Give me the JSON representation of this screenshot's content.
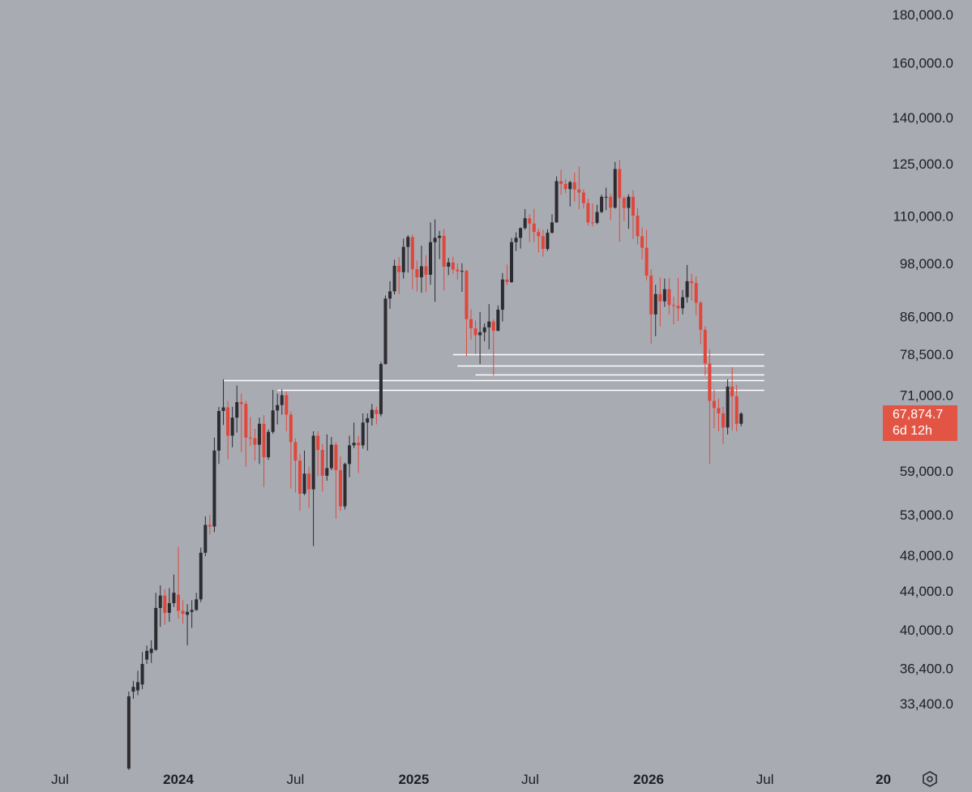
{
  "chart_data": {
    "type": "candlestick",
    "title": "",
    "y_scale": "log",
    "ylim": [
      31500,
      184000
    ],
    "y_ticks": [
      {
        "value": 180000,
        "label": "180,000.0"
      },
      {
        "value": 160000,
        "label": "160,000.0"
      },
      {
        "value": 140000,
        "label": "140,000.0"
      },
      {
        "value": 125000,
        "label": "125,000.0"
      },
      {
        "value": 110000,
        "label": "110,000.0"
      },
      {
        "value": 98000,
        "label": "98,000.0"
      },
      {
        "value": 86000,
        "label": "86,000.0"
      },
      {
        "value": 78500,
        "label": "78,500.0"
      },
      {
        "value": 71000,
        "label": "71,000.0"
      },
      {
        "value": 59000,
        "label": "59,000.0"
      },
      {
        "value": 53000,
        "label": "53,000.0"
      },
      {
        "value": 48000,
        "label": "48,000.0"
      },
      {
        "value": 44000,
        "label": "44,000.0"
      },
      {
        "value": 40000,
        "label": "40,000.0"
      },
      {
        "value": 36400,
        "label": "36,400.0"
      },
      {
        "value": 33400,
        "label": "33,400.0"
      }
    ],
    "x_ticks": [
      {
        "date": "2023-07-01",
        "label": "Jul",
        "bold": false
      },
      {
        "date": "2024-01-01",
        "label": "2024",
        "bold": true
      },
      {
        "date": "2024-07-01",
        "label": "Jul",
        "bold": false
      },
      {
        "date": "2025-01-01",
        "label": "2025",
        "bold": true
      },
      {
        "date": "2025-07-01",
        "label": "Jul",
        "bold": false
      },
      {
        "date": "2026-01-01",
        "label": "2026",
        "bold": true
      },
      {
        "date": "2026-07-01",
        "label": "Jul",
        "bold": false
      },
      {
        "date": "2027-01-01",
        "label": "20",
        "bold": true
      }
    ],
    "x_range": [
      "2023-06-01",
      "2027-03-20"
    ],
    "series": [
      {
        "timeframe": "weekly",
        "start_date": "2023-10-16",
        "colors": {
          "up": "#2b2b30",
          "down": "#e0473b"
        },
        "candles": [
          [
            28500,
            34000,
            28400,
            34400
          ],
          [
            34400,
            34800,
            33800,
            35300
          ],
          [
            34500,
            35200,
            34100,
            36200
          ],
          [
            35000,
            36800,
            34600,
            37900
          ],
          [
            37200,
            38000,
            36800,
            38500
          ],
          [
            37800,
            38200,
            36900,
            39000
          ],
          [
            38100,
            42200,
            38000,
            43800
          ],
          [
            42200,
            43500,
            40300,
            44600
          ],
          [
            43500,
            41700,
            40500,
            44200
          ],
          [
            41700,
            42700,
            40800,
            44300
          ],
          [
            42700,
            43800,
            42300,
            45800
          ],
          [
            43600,
            41900,
            41100,
            49000
          ],
          [
            41900,
            41600,
            40600,
            43000
          ],
          [
            41500,
            41800,
            38500,
            42600
          ],
          [
            41800,
            42000,
            40200,
            43000
          ],
          [
            42000,
            43100,
            41900,
            43800
          ],
          [
            43100,
            48300,
            42800,
            48900
          ],
          [
            48300,
            51700,
            47900,
            52800
          ],
          [
            51700,
            51500,
            50500,
            53000
          ],
          [
            51500,
            62000,
            50800,
            64000
          ],
          [
            62000,
            68300,
            60000,
            69000
          ],
          [
            68300,
            68900,
            66000,
            73800
          ],
          [
            68900,
            64300,
            60700,
            70000
          ],
          [
            64300,
            67200,
            62500,
            69000
          ],
          [
            67200,
            69800,
            64800,
            72700
          ],
          [
            69800,
            69500,
            61800,
            71300
          ],
          [
            69500,
            64000,
            59600,
            70000
          ],
          [
            64000,
            63900,
            62700,
            67300
          ],
          [
            63900,
            62900,
            60500,
            65400
          ],
          [
            62900,
            66200,
            60000,
            67200
          ],
          [
            66200,
            61000,
            56700,
            67600
          ],
          [
            61000,
            64900,
            60600,
            65300
          ],
          [
            64900,
            68400,
            64600,
            71900
          ],
          [
            68400,
            69300,
            66100,
            71300
          ],
          [
            69300,
            71000,
            67700,
            72000
          ],
          [
            71000,
            67700,
            65000,
            71600
          ],
          [
            67700,
            63300,
            56500,
            68200
          ],
          [
            63300,
            60500,
            56000,
            63900
          ],
          [
            60500,
            55800,
            53500,
            61500
          ],
          [
            55800,
            58600,
            55600,
            62000
          ],
          [
            58600,
            56400,
            53900,
            59600
          ],
          [
            56400,
            64300,
            49100,
            65000
          ],
          [
            64300,
            62100,
            58300,
            65000
          ],
          [
            62100,
            58300,
            56100,
            63000
          ],
          [
            58300,
            59400,
            57600,
            64500
          ],
          [
            59400,
            62900,
            59100,
            64100
          ],
          [
            62900,
            59100,
            52500,
            63300
          ],
          [
            59100,
            54100,
            53500,
            61100
          ],
          [
            54100,
            60000,
            53700,
            60200
          ],
          [
            60000,
            62800,
            58100,
            64300
          ],
          [
            62800,
            63200,
            62400,
            66400
          ],
          [
            63200,
            62800,
            58700,
            64300
          ],
          [
            62800,
            66400,
            62300,
            67900
          ],
          [
            66400,
            67100,
            62000,
            67900
          ],
          [
            67100,
            68500,
            65900,
            69500
          ],
          [
            68500,
            67800,
            66100,
            69000
          ],
          [
            67800,
            76600,
            67400,
            77000
          ],
          [
            76600,
            89900,
            76500,
            90600
          ],
          [
            89900,
            91500,
            87700,
            93800
          ],
          [
            91500,
            97400,
            90800,
            98900
          ],
          [
            97400,
            95900,
            90900,
            99500
          ],
          [
            95900,
            102000,
            94400,
            104100
          ],
          [
            102000,
            104500,
            95800,
            105000
          ],
          [
            104500,
            96600,
            92000,
            105100
          ],
          [
            96600,
            94700,
            91500,
            98700
          ],
          [
            94700,
            97300,
            91200,
            102300
          ],
          [
            97300,
            95300,
            91300,
            100000
          ],
          [
            95300,
            103200,
            93000,
            108300
          ],
          [
            103200,
            104300,
            89200,
            109100
          ],
          [
            104300,
            104800,
            99000,
            106100
          ],
          [
            104800,
            97200,
            91700,
            106600
          ],
          [
            97200,
            98200,
            95200,
            99300
          ],
          [
            98200,
            96500,
            95500,
            99600
          ],
          [
            96500,
            96100,
            94200,
            98000
          ],
          [
            96100,
            96200,
            91400,
            98000
          ],
          [
            96200,
            85500,
            78100,
            96500
          ],
          [
            85500,
            83600,
            81300,
            87600
          ],
          [
            83600,
            82200,
            78500,
            85200
          ],
          [
            82200,
            82800,
            76600,
            87000
          ],
          [
            82800,
            83800,
            81000,
            84600
          ],
          [
            83800,
            85000,
            79400,
            88700
          ],
          [
            85000,
            83100,
            74500,
            85500
          ],
          [
            83100,
            87500,
            83000,
            88400
          ],
          [
            87500,
            94200,
            85000,
            95700
          ],
          [
            94200,
            93600,
            92900,
            97700
          ],
          [
            93600,
            103200,
            93400,
            104300
          ],
          [
            103200,
            104300,
            101000,
            105700
          ],
          [
            104300,
            106800,
            101600,
            107000
          ],
          [
            106800,
            109400,
            106400,
            111900
          ],
          [
            109400,
            108000,
            103200,
            110500
          ],
          [
            108000,
            105800,
            103200,
            112000
          ],
          [
            105800,
            104700,
            100600,
            106700
          ],
          [
            104700,
            101500,
            99600,
            106400
          ],
          [
            101500,
            105600,
            101000,
            106500
          ],
          [
            105600,
            108300,
            105400,
            110500
          ],
          [
            108300,
            119800,
            108200,
            121200
          ],
          [
            119800,
            119000,
            115800,
            123200
          ],
          [
            119000,
            117500,
            116400,
            120300
          ],
          [
            117500,
            119500,
            112600,
            119900
          ],
          [
            119500,
            117400,
            114000,
            122300
          ],
          [
            117400,
            116500,
            111800,
            124200
          ],
          [
            116500,
            113500,
            112100,
            117400
          ],
          [
            113500,
            108300,
            107500,
            114800
          ],
          [
            108300,
            108200,
            107200,
            113400
          ],
          [
            108200,
            111100,
            107800,
            113100
          ],
          [
            111100,
            115300,
            110800,
            115900
          ],
          [
            115300,
            115300,
            111600,
            117900
          ],
          [
            115300,
            112300,
            108900,
            116100
          ],
          [
            112300,
            123400,
            112000,
            125600
          ],
          [
            123400,
            115000,
            103300,
            126200
          ],
          [
            115000,
            112200,
            108700,
            115400
          ],
          [
            112200,
            115300,
            106600,
            116000
          ],
          [
            115300,
            110100,
            104000,
            117200
          ],
          [
            110100,
            104700,
            102600,
            112200
          ],
          [
            104700,
            101800,
            98900,
            107000
          ],
          [
            101800,
            95100,
            94000,
            106300
          ],
          [
            95100,
            86500,
            80500,
            96600
          ],
          [
            86500,
            90900,
            82000,
            93000
          ],
          [
            90900,
            89300,
            84000,
            94700
          ],
          [
            89300,
            92000,
            88100,
            94400
          ],
          [
            92000,
            88500,
            86500,
            94500
          ],
          [
            88500,
            88300,
            84400,
            90300
          ],
          [
            88300,
            87800,
            85100,
            94600
          ],
          [
            87800,
            90200,
            86500,
            91800
          ],
          [
            90200,
            93800,
            89000,
            97600
          ],
          [
            93800,
            93400,
            89500,
            95500
          ],
          [
            93400,
            89000,
            86300,
            94900
          ],
          [
            89000,
            83300,
            80400,
            89400
          ],
          [
            83300,
            76700,
            74500,
            84000
          ],
          [
            76700,
            70000,
            60000,
            79400
          ],
          [
            70000,
            68800,
            65500,
            72000
          ],
          [
            68800,
            67900,
            65000,
            70400
          ],
          [
            67900,
            65600,
            63000,
            69000
          ],
          [
            65600,
            72500,
            64500,
            73800
          ],
          [
            72500,
            70800,
            65100,
            76000
          ],
          [
            70800,
            66200,
            65000,
            72800
          ],
          [
            66200,
            67874.7,
            65800,
            68100
          ]
        ]
      }
    ],
    "current_price": {
      "value": 67874.7,
      "label": "67,874.7",
      "countdown": "6d 12h",
      "color": "#e25545"
    },
    "horizontal_lines": [
      {
        "price": 78500,
        "start_date": "2025-03-03",
        "end_date": "2026-06-30",
        "color": "#ffffff"
      },
      {
        "price": 76300,
        "start_date": "2025-03-10",
        "end_date": "2026-06-30",
        "color": "#ffffff"
      },
      {
        "price": 74600,
        "start_date": "2025-04-07",
        "end_date": "2026-06-30",
        "color": "#ffffff"
      },
      {
        "price": 73700,
        "start_date": "2024-03-11",
        "end_date": "2026-06-30",
        "color": "#ffffff"
      },
      {
        "price": 71900,
        "start_date": "2024-06-03",
        "end_date": "2026-06-30",
        "color": "#ffffff"
      }
    ],
    "grid": false,
    "background": "#a9abb3",
    "axis_text_color": "#1e1e22"
  },
  "controls": {
    "settings_icon": "hexagon-settings-icon"
  }
}
